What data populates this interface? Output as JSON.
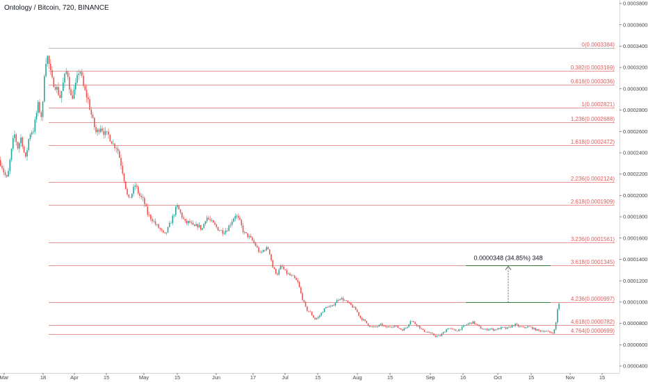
{
  "header": {
    "title": "Ontology / Bitcoin, 720, BINANCE"
  },
  "colors": {
    "up": "#26a69a",
    "down": "#ef5350",
    "fib_line": "#e57373",
    "fib_top_line": "#9e9e9e",
    "measure": "#2e7d32",
    "axis": "#444444"
  },
  "chart_data": {
    "type": "candlestick",
    "title": "Ontology / Bitcoin, 720, BINANCE",
    "ylim": [
      3.8e-05,
      0.00039
    ],
    "y_ticks": [
      "0.0003800",
      "0.0003600",
      "0.0003400",
      "0.0003200",
      "0.0003000",
      "0.0002800",
      "0.0002600",
      "0.0002400",
      "0.0002200",
      "0.0002000",
      "0.0001800",
      "0.0001600",
      "0.0001400",
      "0.0001200",
      "0.0001000",
      "0.0000800",
      "0.0000600",
      "0.0000400"
    ],
    "x_ticks": [
      "Mar",
      "18",
      "Apr",
      "15",
      "May",
      "15",
      "Jun",
      "17",
      "Jul",
      "15",
      "Aug",
      "15",
      "Sep",
      "16",
      "Oct",
      "15",
      "Nov",
      "15"
    ],
    "fib_levels": [
      {
        "label": "0(0.0003384)",
        "value": 0.0003384
      },
      {
        "label": "0.382(0.0003169)",
        "value": 0.0003169
      },
      {
        "label": "0.618(0.0003036)",
        "value": 0.0003036
      },
      {
        "label": "1(0.0002821)",
        "value": 0.0002821
      },
      {
        "label": "1.236(0.0002688)",
        "value": 0.0002688
      },
      {
        "label": "1.618(0.0002472)",
        "value": 0.0002472
      },
      {
        "label": "2.236(0.0002124)",
        "value": 0.0002124
      },
      {
        "label": "2.618(0.0001909)",
        "value": 0.0001909
      },
      {
        "label": "3.236(0.0001561)",
        "value": 0.0001561
      },
      {
        "label": "3.618(0.0001345)",
        "value": 0.0001345
      },
      {
        "label": "4.236(0.0000997)",
        "value": 9.97e-05
      },
      {
        "label": "4.618(0.0000782)",
        "value": 7.82e-05
      },
      {
        "label": "4.764(0.0000699)",
        "value": 6.99e-05
      }
    ],
    "measurement": {
      "label": "0.0000348 (34.85%) 348",
      "from": 9.97e-05,
      "to": 0.0001345
    },
    "price_path": [
      [
        0,
        0.000233
      ],
      [
        3,
        0.00023
      ],
      [
        8,
        0.00022
      ],
      [
        12,
        0.000215
      ],
      [
        17,
        0.000238
      ],
      [
        22,
        0.000258
      ],
      [
        27,
        0.000245
      ],
      [
        32,
        0.000255
      ],
      [
        38,
        0.000233
      ],
      [
        44,
        0.000258
      ],
      [
        50,
        0.000262
      ],
      [
        56,
        0.000285
      ],
      [
        62,
        0.000272
      ],
      [
        66,
        0.000325
      ],
      [
        70,
        0.00033
      ],
      [
        76,
        0.000308
      ],
      [
        82,
        0.000302
      ],
      [
        88,
        0.000292
      ],
      [
        94,
        0.00031
      ],
      [
        98,
        0.000318
      ],
      [
        104,
        0.00029
      ],
      [
        110,
        0.000302
      ],
      [
        116,
        0.00032
      ],
      [
        122,
        0.0003
      ],
      [
        128,
        0.00029
      ],
      [
        134,
        0.000272
      ],
      [
        140,
        0.000258
      ],
      [
        146,
        0.000265
      ],
      [
        152,
        0.000258
      ],
      [
        158,
        0.000256
      ],
      [
        164,
        0.000248
      ],
      [
        170,
        0.000245
      ],
      [
        176,
        0.000228
      ],
      [
        181,
        0.000212
      ],
      [
        186,
        0.000195
      ],
      [
        190,
        0.0002
      ],
      [
        196,
        0.00021
      ],
      [
        202,
        0.0002
      ],
      [
        208,
        0.000195
      ],
      [
        214,
        0.000182
      ],
      [
        220,
        0.000178
      ],
      [
        226,
        0.000172
      ],
      [
        232,
        0.000168
      ],
      [
        238,
        0.000162
      ],
      [
        244,
        0.00017
      ],
      [
        250,
        0.00018
      ],
      [
        256,
        0.00019
      ],
      [
        262,
        0.000182
      ],
      [
        268,
        0.000174
      ],
      [
        274,
        0.000175
      ],
      [
        280,
        0.00017
      ],
      [
        286,
        0.000172
      ],
      [
        292,
        0.000168
      ],
      [
        298,
        0.00018
      ],
      [
        304,
        0.000176
      ],
      [
        310,
        0.000172
      ],
      [
        316,
        0.000168
      ],
      [
        322,
        0.000166
      ],
      [
        328,
        0.000168
      ],
      [
        334,
        0.000175
      ],
      [
        340,
        0.000182
      ],
      [
        346,
        0.000176
      ],
      [
        352,
        0.000165
      ],
      [
        358,
        0.000162
      ],
      [
        364,
        0.000158
      ],
      [
        370,
        0.000152
      ],
      [
        376,
        0.000145
      ],
      [
        382,
        0.00015
      ],
      [
        388,
        0.00015
      ],
      [
        394,
        0.000132
      ],
      [
        400,
        0.000126
      ],
      [
        406,
        0.000134
      ],
      [
        412,
        0.000128
      ],
      [
        418,
        0.000125
      ],
      [
        424,
        0.000123
      ],
      [
        430,
        0.000118
      ],
      [
        436,
        0.000104
      ],
      [
        442,
        9.3e-05
      ],
      [
        448,
        9e-05
      ],
      [
        454,
        8.4e-05
      ],
      [
        460,
        8.6e-05
      ],
      [
        466,
        9.2e-05
      ],
      [
        472,
        9.6e-05
      ],
      [
        478,
        9.5e-05
      ],
      [
        484,
        0.0001
      ],
      [
        490,
        0.000104
      ],
      [
        496,
        0.000102
      ],
      [
        502,
        9.9e-05
      ],
      [
        508,
        9.6e-05
      ],
      [
        514,
        9.2e-05
      ],
      [
        520,
        8.5e-05
      ],
      [
        526,
        8.2e-05
      ],
      [
        532,
        7.8e-05
      ],
      [
        538,
        7.6e-05
      ],
      [
        544,
        7.7e-05
      ],
      [
        550,
        7.9e-05
      ],
      [
        556,
        7.6e-05
      ],
      [
        562,
        7.7e-05
      ],
      [
        568,
        7.8e-05
      ],
      [
        574,
        7.6e-05
      ],
      [
        580,
        7.4e-05
      ],
      [
        586,
        7.6e-05
      ],
      [
        592,
        8.3e-05
      ],
      [
        598,
        8e-05
      ],
      [
        604,
        7.7e-05
      ],
      [
        610,
        7.3e-05
      ],
      [
        616,
        7.2e-05
      ],
      [
        622,
        7e-05
      ],
      [
        628,
        6.8e-05
      ],
      [
        634,
        6.8e-05
      ],
      [
        640,
        7.2e-05
      ],
      [
        646,
        7.6e-05
      ],
      [
        652,
        7.4e-05
      ],
      [
        658,
        7.3e-05
      ],
      [
        664,
        7.5e-05
      ],
      [
        670,
        7.8e-05
      ],
      [
        676,
        8e-05
      ],
      [
        682,
        8.1e-05
      ],
      [
        688,
        7.8e-05
      ],
      [
        694,
        7.5e-05
      ],
      [
        700,
        7.4e-05
      ],
      [
        706,
        7.5e-05
      ],
      [
        712,
        7.4e-05
      ],
      [
        718,
        7.5e-05
      ],
      [
        724,
        7.6e-05
      ],
      [
        730,
        7.5e-05
      ],
      [
        736,
        7.7e-05
      ],
      [
        742,
        7.9e-05
      ],
      [
        748,
        7.7e-05
      ],
      [
        754,
        7.6e-05
      ],
      [
        760,
        7.7e-05
      ],
      [
        766,
        7.6e-05
      ],
      [
        772,
        7.4e-05
      ],
      [
        778,
        7.3e-05
      ],
      [
        784,
        7.3e-05
      ],
      [
        790,
        7.2e-05
      ],
      [
        796,
        7.1e-05
      ],
      [
        800,
        7.5e-05
      ],
      [
        804,
        9.8e-05
      ]
    ]
  }
}
